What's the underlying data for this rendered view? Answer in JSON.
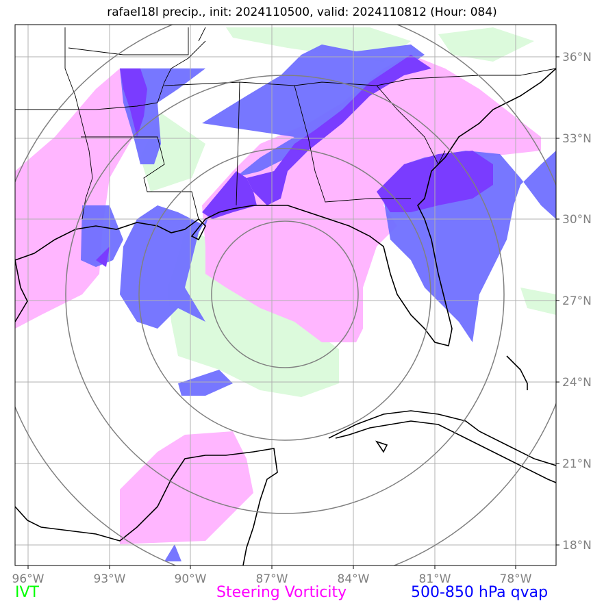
{
  "title": "rafael18l precip., init: 2024110500, valid: 2024110812 (Hour: 084)",
  "axes": {
    "x_ticks": [
      "96°W",
      "93°W",
      "90°W",
      "87°W",
      "84°W",
      "81°W",
      "78°W"
    ],
    "y_ticks": [
      "36°N",
      "33°N",
      "30°N",
      "27°N",
      "24°N",
      "21°N",
      "18°N"
    ]
  },
  "legend": {
    "ivt": {
      "label": "IVT",
      "color": "#00ff00"
    },
    "vorticity": {
      "label": "Steering Vorticity",
      "color": "#ff00ff"
    },
    "qvap": {
      "label": "500-850 hPa qvap",
      "color": "#0000ff"
    }
  },
  "colors": {
    "ivt_fill": "#dcfadc",
    "vorticity_fill": "#ffb6ff",
    "qvap_fill": "#7070ff",
    "qvap_strong_fill": "#7a3cff",
    "grid": "#b0b0b0",
    "range_rings": "#808080",
    "coast": "#000000"
  }
}
